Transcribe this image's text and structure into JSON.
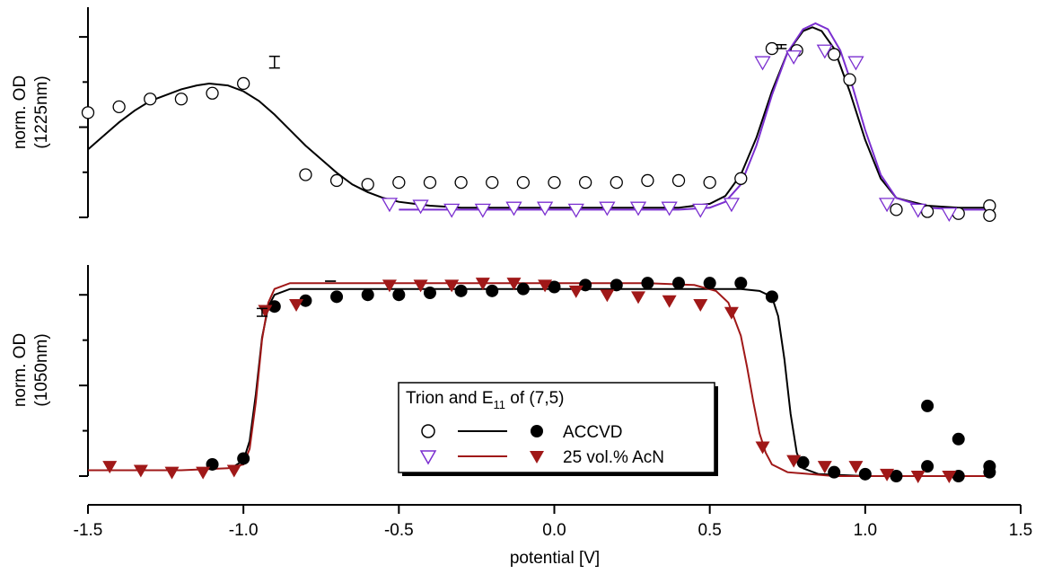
{
  "chart_data": {
    "type": "scatter",
    "xlabel": "potential [V]",
    "x_ticks": [
      "-1.5",
      "-1.0",
      "-0.5",
      "0.0",
      "0.5",
      "1.0",
      "1.5"
    ],
    "xlim": [
      -1.5,
      1.5
    ],
    "grid": false,
    "colors": {
      "accvd": "#000000",
      "acn_top": "#7b2fd0",
      "acn_bottom": "#a01818"
    },
    "panels": [
      {
        "ylabel_line1": "norm. OD",
        "ylabel_line2": "(1225nm)",
        "ylim": [
          0,
          1
        ],
        "series": [
          {
            "name": "ACCVD",
            "marker": "circle-open",
            "color": "#000000",
            "x": [
              -1.5,
              -1.4,
              -1.3,
              -1.2,
              -1.1,
              -1.0,
              -0.8,
              -0.7,
              -0.6,
              -0.5,
              -0.4,
              -0.3,
              -0.2,
              -0.1,
              0.0,
              0.1,
              0.2,
              0.3,
              0.4,
              0.5,
              0.6,
              0.7,
              0.78,
              0.9,
              0.95,
              1.1,
              1.2,
              1.3,
              1.4,
              1.4
            ],
            "y": [
              0.54,
              0.57,
              0.61,
              0.61,
              0.64,
              0.69,
              0.22,
              0.19,
              0.17,
              0.18,
              0.18,
              0.18,
              0.18,
              0.18,
              0.18,
              0.18,
              0.18,
              0.19,
              0.19,
              0.18,
              0.2,
              0.87,
              0.86,
              0.84,
              0.71,
              0.04,
              0.03,
              0.02,
              0.06,
              0.01
            ]
          },
          {
            "name": "25 vol.% AcN",
            "marker": "triangle-open",
            "color": "#7b2fd0",
            "x": [
              -0.53,
              -0.43,
              -0.33,
              -0.23,
              -0.13,
              -0.03,
              0.07,
              0.17,
              0.27,
              0.37,
              0.47,
              0.57,
              0.67,
              0.77,
              0.87,
              0.97,
              1.07,
              1.17,
              1.27
            ],
            "y": [
              0.07,
              0.06,
              0.04,
              0.04,
              0.05,
              0.05,
              0.04,
              0.05,
              0.05,
              0.05,
              0.04,
              0.07,
              0.8,
              0.83,
              0.86,
              0.8,
              0.07,
              0.04,
              0.02
            ]
          },
          {
            "name": "ACCVD fit",
            "type": "line",
            "color": "#000000",
            "x": [
              -1.5,
              -1.45,
              -1.4,
              -1.35,
              -1.3,
              -1.25,
              -1.2,
              -1.15,
              -1.11,
              -1.05,
              -1.0,
              -0.95,
              -0.9,
              -0.85,
              -0.8,
              -0.75,
              -0.7,
              -0.65,
              -0.6,
              -0.55,
              -0.5,
              -0.45,
              -0.4,
              -0.3,
              -0.2,
              -0.1,
              0.0,
              0.1,
              0.2,
              0.3,
              0.4,
              0.5,
              0.55,
              0.6,
              0.65,
              0.7,
              0.75,
              0.8,
              0.83,
              0.86,
              0.9,
              0.95,
              1.0,
              1.05,
              1.1,
              1.2,
              1.3,
              1.4
            ],
            "y": [
              0.35,
              0.42,
              0.49,
              0.55,
              0.6,
              0.63,
              0.66,
              0.68,
              0.69,
              0.68,
              0.65,
              0.6,
              0.53,
              0.45,
              0.37,
              0.3,
              0.23,
              0.17,
              0.13,
              0.1,
              0.08,
              0.07,
              0.06,
              0.05,
              0.05,
              0.05,
              0.05,
              0.05,
              0.05,
              0.05,
              0.05,
              0.07,
              0.11,
              0.22,
              0.41,
              0.65,
              0.85,
              0.96,
              0.98,
              0.96,
              0.87,
              0.65,
              0.4,
              0.2,
              0.1,
              0.06,
              0.05,
              0.05
            ]
          },
          {
            "name": "25 vol.% AcN fit",
            "type": "line",
            "color": "#7b2fd0",
            "x": [
              -0.5,
              -0.4,
              -0.3,
              -0.2,
              -0.1,
              0.0,
              0.1,
              0.2,
              0.3,
              0.4,
              0.5,
              0.55,
              0.6,
              0.65,
              0.7,
              0.75,
              0.8,
              0.84,
              0.88,
              0.92,
              0.96,
              1.0,
              1.05,
              1.1,
              1.2,
              1.3,
              1.4
            ],
            "y": [
              0.04,
              0.04,
              0.04,
              0.04,
              0.04,
              0.04,
              0.04,
              0.04,
              0.04,
              0.04,
              0.05,
              0.08,
              0.17,
              0.37,
              0.63,
              0.85,
              0.97,
              1.0,
              0.97,
              0.86,
              0.67,
              0.45,
              0.22,
              0.1,
              0.05,
              0.04,
              0.04
            ]
          }
        ],
        "error_bars": [
          {
            "x": -0.9,
            "y": 0.8,
            "err": 0.03
          },
          {
            "x": 0.73,
            "y": 0.88,
            "err": 0.01
          }
        ]
      },
      {
        "ylabel_line1": "norm. OD",
        "ylabel_line2": "(1050nm)",
        "ylim": [
          0,
          1
        ],
        "series": [
          {
            "name": "ACCVD",
            "marker": "circle-filled",
            "color": "#000000",
            "x": [
              -1.1,
              -1.0,
              -0.9,
              -0.8,
              -0.7,
              -0.6,
              -0.5,
              -0.4,
              -0.3,
              -0.2,
              -0.1,
              0.0,
              0.1,
              0.2,
              0.3,
              0.4,
              0.5,
              0.6,
              0.7,
              0.8,
              0.9,
              1.0,
              1.1,
              1.2,
              1.2,
              1.3,
              1.3,
              1.4,
              1.4
            ],
            "y": [
              0.06,
              0.09,
              0.87,
              0.9,
              0.92,
              0.93,
              0.93,
              0.94,
              0.95,
              0.95,
              0.96,
              0.97,
              0.98,
              0.98,
              0.99,
              0.99,
              0.99,
              0.99,
              0.92,
              0.07,
              0.02,
              0.01,
              0.0,
              0.36,
              0.05,
              0.19,
              0.0,
              0.02,
              0.05
            ]
          },
          {
            "name": "25 vol.% AcN",
            "marker": "triangle-filled",
            "color": "#a01818",
            "x": [
              -1.43,
              -1.33,
              -1.23,
              -1.13,
              -1.03,
              -0.93,
              -0.83,
              -0.53,
              -0.43,
              -0.33,
              -0.23,
              -0.13,
              -0.03,
              0.07,
              0.17,
              0.27,
              0.37,
              0.47,
              0.57,
              0.67,
              0.77,
              0.87,
              0.97,
              1.07,
              1.17,
              1.27
            ],
            "y": [
              0.05,
              0.03,
              0.02,
              0.02,
              0.03,
              0.85,
              0.88,
              0.98,
              0.98,
              0.98,
              0.99,
              0.99,
              0.98,
              0.95,
              0.93,
              0.92,
              0.9,
              0.88,
              0.84,
              0.15,
              0.08,
              0.05,
              0.05,
              0.01,
              0.0,
              0.0
            ]
          },
          {
            "name": "ACCVD fit",
            "type": "line",
            "color": "#000000",
            "x": [
              -1.03,
              -1.0,
              -0.98,
              -0.96,
              -0.94,
              -0.92,
              -0.9,
              -0.85,
              -0.6,
              -0.3,
              0.0,
              0.3,
              0.5,
              0.6,
              0.66,
              0.7,
              0.72,
              0.74,
              0.76,
              0.78,
              0.8,
              0.85,
              1.0,
              1.2,
              1.4
            ],
            "y": [
              0.05,
              0.08,
              0.18,
              0.42,
              0.71,
              0.87,
              0.93,
              0.96,
              0.96,
              0.96,
              0.96,
              0.96,
              0.96,
              0.96,
              0.95,
              0.92,
              0.82,
              0.6,
              0.32,
              0.12,
              0.04,
              0.01,
              0.0,
              0.0,
              0.0
            ]
          },
          {
            "name": "25 vol.% AcN fit",
            "type": "line",
            "color": "#a01818",
            "x": [
              -1.5,
              -1.2,
              -1.05,
              -1.0,
              -0.98,
              -0.96,
              -0.94,
              -0.92,
              -0.9,
              -0.85,
              -0.6,
              -0.3,
              0.0,
              0.3,
              0.45,
              0.52,
              0.56,
              0.6,
              0.62,
              0.64,
              0.66,
              0.68,
              0.7,
              0.75,
              0.9,
              1.2,
              1.4
            ],
            "y": [
              0.03,
              0.03,
              0.04,
              0.06,
              0.14,
              0.38,
              0.7,
              0.89,
              0.96,
              0.99,
              0.99,
              0.99,
              0.99,
              0.99,
              0.98,
              0.95,
              0.89,
              0.72,
              0.56,
              0.38,
              0.22,
              0.12,
              0.06,
              0.02,
              0.0,
              0.0,
              0.0
            ]
          }
        ],
        "error_bars": [
          {
            "x": -0.94,
            "y": 0.84,
            "err": 0.02
          },
          {
            "x": -0.72,
            "y": 1.0,
            "err": 0.0
          }
        ]
      }
    ],
    "legend": {
      "title_main": "Trion and E",
      "title_sub": "11",
      "title_rest": " of (7,5)",
      "entries": [
        "ACCVD",
        "25 vol.% AcN"
      ],
      "placement": "bottom-center"
    }
  }
}
